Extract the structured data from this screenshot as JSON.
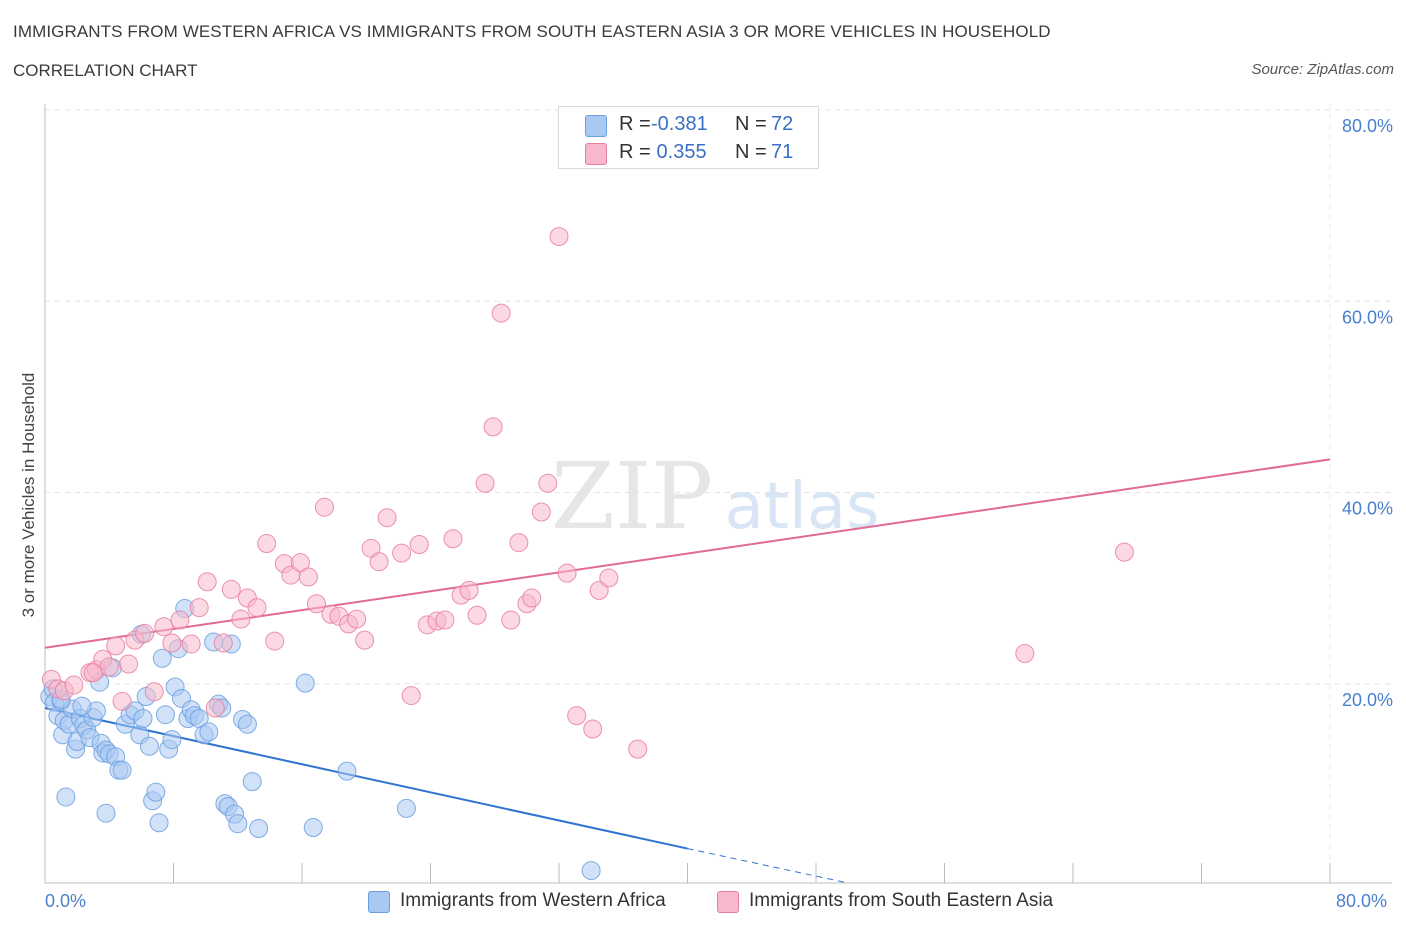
{
  "header": {
    "title": "IMMIGRANTS FROM WESTERN AFRICA VS IMMIGRANTS FROM SOUTH EASTERN ASIA 3 OR MORE VEHICLES IN HOUSEHOLD",
    "subtitle": "CORRELATION CHART",
    "source": "Source: ZipAtlas.com"
  },
  "watermark": {
    "zip": "ZIP",
    "atlas": "atlas"
  },
  "legend": {
    "rows": [
      {
        "r_label": "R =",
        "r_value": "-0.381",
        "n_label": "N =",
        "n_value": "72",
        "color": "#a9c8f2"
      },
      {
        "r_label": "R =",
        "r_value": " 0.355",
        "n_label": "N =",
        "n_value": "71",
        "color": "#f7b8cb"
      }
    ]
  },
  "bottom_legend": [
    {
      "label": "Immigrants from Western Africa",
      "color": "#a9c8f2"
    },
    {
      "label": "Immigrants from South Eastern Asia",
      "color": "#f7b8cb"
    }
  ],
  "chart_data": {
    "type": "scatter",
    "ylabel": "3 or more Vehicles in Household",
    "xlim": [
      0,
      80
    ],
    "ylim": [
      0,
      80
    ],
    "x_tick_labels": [
      "0.0%",
      "80.0%"
    ],
    "y_tick_labels": [
      "20.0%",
      "40.0%",
      "60.0%",
      "80.0%"
    ],
    "y_ticks": [
      20,
      40,
      60,
      80
    ],
    "grid": true,
    "series": [
      {
        "name": "Immigrants from Western Africa",
        "color": "#6b9fe0",
        "fill": "#a9c8f2",
        "trend": {
          "x0": 0,
          "y0": 18.3,
          "x1": 40,
          "y1": 3.6,
          "dash_x_end": 50,
          "dash_y_end": 0
        },
        "points": [
          [
            0.3,
            19.5
          ],
          [
            0.5,
            20.3
          ],
          [
            0.6,
            18.9
          ],
          [
            0.8,
            17.5
          ],
          [
            1.0,
            19.0
          ],
          [
            1.1,
            15.5
          ],
          [
            1.2,
            17.0
          ],
          [
            1.3,
            9.0
          ],
          [
            1.5,
            16.6
          ],
          [
            1.7,
            18.2
          ],
          [
            1.9,
            14.0
          ],
          [
            2.0,
            14.8
          ],
          [
            2.2,
            17.2
          ],
          [
            2.4,
            16.5
          ],
          [
            2.6,
            16.0
          ],
          [
            2.8,
            15.2
          ],
          [
            3.0,
            17.3
          ],
          [
            3.2,
            18.0
          ],
          [
            3.4,
            21.0
          ],
          [
            3.5,
            14.6
          ],
          [
            3.6,
            13.6
          ],
          [
            3.8,
            13.9
          ],
          [
            4.0,
            13.5
          ],
          [
            4.2,
            22.5
          ],
          [
            4.4,
            13.2
          ],
          [
            4.6,
            11.8
          ],
          [
            4.8,
            11.8
          ],
          [
            5.0,
            16.6
          ],
          [
            5.3,
            17.6
          ],
          [
            5.6,
            18.0
          ],
          [
            5.9,
            15.5
          ],
          [
            6.1,
            17.2
          ],
          [
            6.3,
            19.5
          ],
          [
            6.5,
            14.3
          ],
          [
            6.7,
            8.6
          ],
          [
            6.9,
            9.5
          ],
          [
            7.1,
            6.3
          ],
          [
            7.3,
            23.5
          ],
          [
            7.5,
            17.6
          ],
          [
            7.7,
            14.0
          ],
          [
            7.9,
            15.0
          ],
          [
            8.1,
            20.5
          ],
          [
            8.3,
            24.5
          ],
          [
            8.5,
            19.3
          ],
          [
            8.7,
            28.7
          ],
          [
            8.9,
            17.2
          ],
          [
            9.1,
            18.1
          ],
          [
            9.3,
            17.5
          ],
          [
            9.6,
            17.2
          ],
          [
            9.9,
            15.5
          ],
          [
            10.2,
            15.8
          ],
          [
            10.5,
            25.2
          ],
          [
            10.8,
            18.7
          ],
          [
            11.0,
            18.3
          ],
          [
            11.2,
            8.3
          ],
          [
            11.4,
            8.0
          ],
          [
            11.6,
            25.0
          ],
          [
            11.8,
            7.2
          ],
          [
            12.0,
            6.2
          ],
          [
            12.3,
            17.1
          ],
          [
            12.6,
            16.6
          ],
          [
            12.9,
            10.6
          ],
          [
            13.3,
            5.7
          ],
          [
            6.0,
            26.0
          ],
          [
            3.8,
            7.3
          ],
          [
            16.2,
            20.9
          ],
          [
            16.7,
            5.8
          ],
          [
            18.8,
            11.7
          ],
          [
            22.5,
            7.8
          ],
          [
            34.0,
            1.3
          ],
          [
            2.3,
            18.5
          ],
          [
            1.0,
            19.2
          ]
        ]
      },
      {
        "name": "Immigrants from South Eastern Asia",
        "color": "#e77fa0",
        "fill": "#f7b8cb",
        "trend": {
          "x0": 0,
          "y0": 24.6,
          "x1": 80,
          "y1": 44.3
        },
        "points": [
          [
            0.4,
            21.3
          ],
          [
            0.8,
            20.3
          ],
          [
            1.2,
            20.1
          ],
          [
            1.8,
            20.7
          ],
          [
            2.8,
            22.0
          ],
          [
            3.2,
            22.3
          ],
          [
            3.6,
            23.4
          ],
          [
            4.0,
            22.6
          ],
          [
            4.4,
            24.8
          ],
          [
            4.8,
            19.0
          ],
          [
            5.2,
            22.9
          ],
          [
            5.6,
            25.4
          ],
          [
            6.2,
            26.1
          ],
          [
            6.8,
            20.0
          ],
          [
            7.4,
            26.8
          ],
          [
            7.9,
            25.1
          ],
          [
            8.4,
            27.5
          ],
          [
            9.1,
            25.0
          ],
          [
            9.6,
            28.8
          ],
          [
            10.1,
            31.5
          ],
          [
            10.6,
            18.3
          ],
          [
            11.1,
            25.1
          ],
          [
            11.6,
            30.7
          ],
          [
            12.2,
            27.6
          ],
          [
            12.6,
            29.8
          ],
          [
            13.2,
            28.8
          ],
          [
            13.8,
            35.5
          ],
          [
            14.3,
            25.3
          ],
          [
            14.9,
            33.4
          ],
          [
            15.3,
            32.2
          ],
          [
            15.9,
            33.5
          ],
          [
            16.4,
            32.0
          ],
          [
            16.9,
            29.2
          ],
          [
            17.4,
            39.3
          ],
          [
            17.8,
            28.1
          ],
          [
            18.3,
            27.9
          ],
          [
            18.9,
            27.1
          ],
          [
            19.4,
            27.6
          ],
          [
            19.9,
            25.4
          ],
          [
            20.3,
            35.0
          ],
          [
            20.8,
            33.6
          ],
          [
            21.3,
            38.2
          ],
          [
            22.2,
            34.5
          ],
          [
            22.8,
            19.6
          ],
          [
            23.3,
            35.4
          ],
          [
            23.8,
            27.0
          ],
          [
            24.4,
            27.4
          ],
          [
            24.9,
            27.5
          ],
          [
            25.4,
            36.0
          ],
          [
            25.9,
            30.1
          ],
          [
            26.4,
            30.6
          ],
          [
            26.9,
            28.0
          ],
          [
            27.4,
            41.8
          ],
          [
            27.9,
            47.7
          ],
          [
            28.4,
            59.6
          ],
          [
            29.0,
            27.5
          ],
          [
            29.5,
            35.6
          ],
          [
            30.0,
            29.2
          ],
          [
            30.3,
            29.8
          ],
          [
            30.9,
            38.8
          ],
          [
            31.3,
            41.8
          ],
          [
            32.0,
            67.6
          ],
          [
            32.5,
            32.4
          ],
          [
            33.1,
            17.5
          ],
          [
            34.1,
            16.1
          ],
          [
            34.5,
            30.6
          ],
          [
            35.1,
            31.9
          ],
          [
            36.9,
            14.0
          ],
          [
            61.0,
            24.0
          ],
          [
            67.2,
            34.6
          ],
          [
            3.0,
            22.0
          ]
        ]
      }
    ]
  }
}
